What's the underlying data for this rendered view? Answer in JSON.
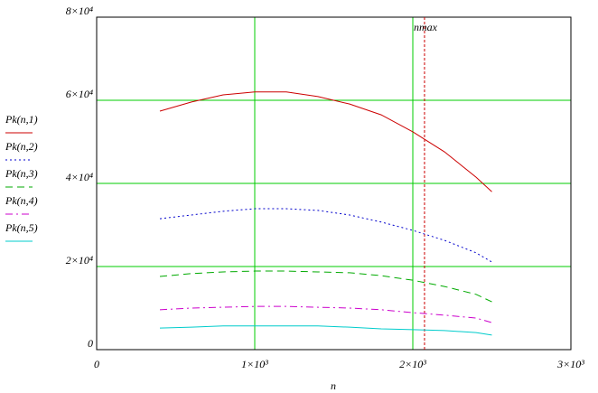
{
  "chart_data": {
    "type": "line",
    "x_label": "n",
    "x": [
      400,
      600,
      800,
      1000,
      1200,
      1400,
      1600,
      1800,
      2000,
      2200,
      2400,
      2500
    ],
    "series": [
      {
        "name": "Pk(n,1)",
        "color": "#cc0000",
        "style": "solid",
        "values": [
          57400,
          59600,
          61300,
          62000,
          62000,
          60900,
          59100,
          56500,
          52400,
          47600,
          41500,
          38000
        ]
      },
      {
        "name": "Pk(n,2)",
        "color": "#0000cc",
        "style": "dotted",
        "values": [
          31500,
          32400,
          33300,
          33900,
          33900,
          33500,
          32400,
          30700,
          28700,
          26300,
          23300,
          21100
        ]
      },
      {
        "name": "Pk(n,3)",
        "color": "#00aa00",
        "style": "dashed",
        "values": [
          17600,
          18300,
          18700,
          18900,
          18900,
          18700,
          18500,
          17800,
          16700,
          15200,
          13300,
          11500
        ]
      },
      {
        "name": "Pk(n,4)",
        "color": "#cc00cc",
        "style": "dashdot",
        "values": [
          9600,
          10000,
          10200,
          10400,
          10400,
          10200,
          10000,
          9600,
          8900,
          8300,
          7600,
          6500
        ]
      },
      {
        "name": "Pk(n,5)",
        "color": "#00cccc",
        "style": "solid",
        "values": [
          5200,
          5400,
          5700,
          5700,
          5700,
          5700,
          5400,
          5000,
          4800,
          4600,
          4100,
          3500
        ]
      }
    ],
    "xlim": [
      0,
      3000
    ],
    "xticks": [
      0,
      {
        "value": 1000,
        "label": "1×10³"
      },
      {
        "value": 2000,
        "label": "2×10³"
      },
      {
        "value": 3000,
        "label": "3×10³"
      }
    ],
    "ylim": [
      0,
      80000
    ],
    "yticks": [
      0,
      {
        "value": 20000,
        "label": "2×10⁴"
      },
      {
        "value": 40000,
        "label": "4×10⁴"
      },
      {
        "value": 60000,
        "label": "6×10⁴"
      },
      {
        "value": 80000,
        "label": "8×10⁴"
      }
    ],
    "grid": true,
    "grid_color": "#00cc00",
    "legend": "left",
    "vline": {
      "x": 2074,
      "label": "nmax",
      "color": "#cc0000"
    }
  }
}
